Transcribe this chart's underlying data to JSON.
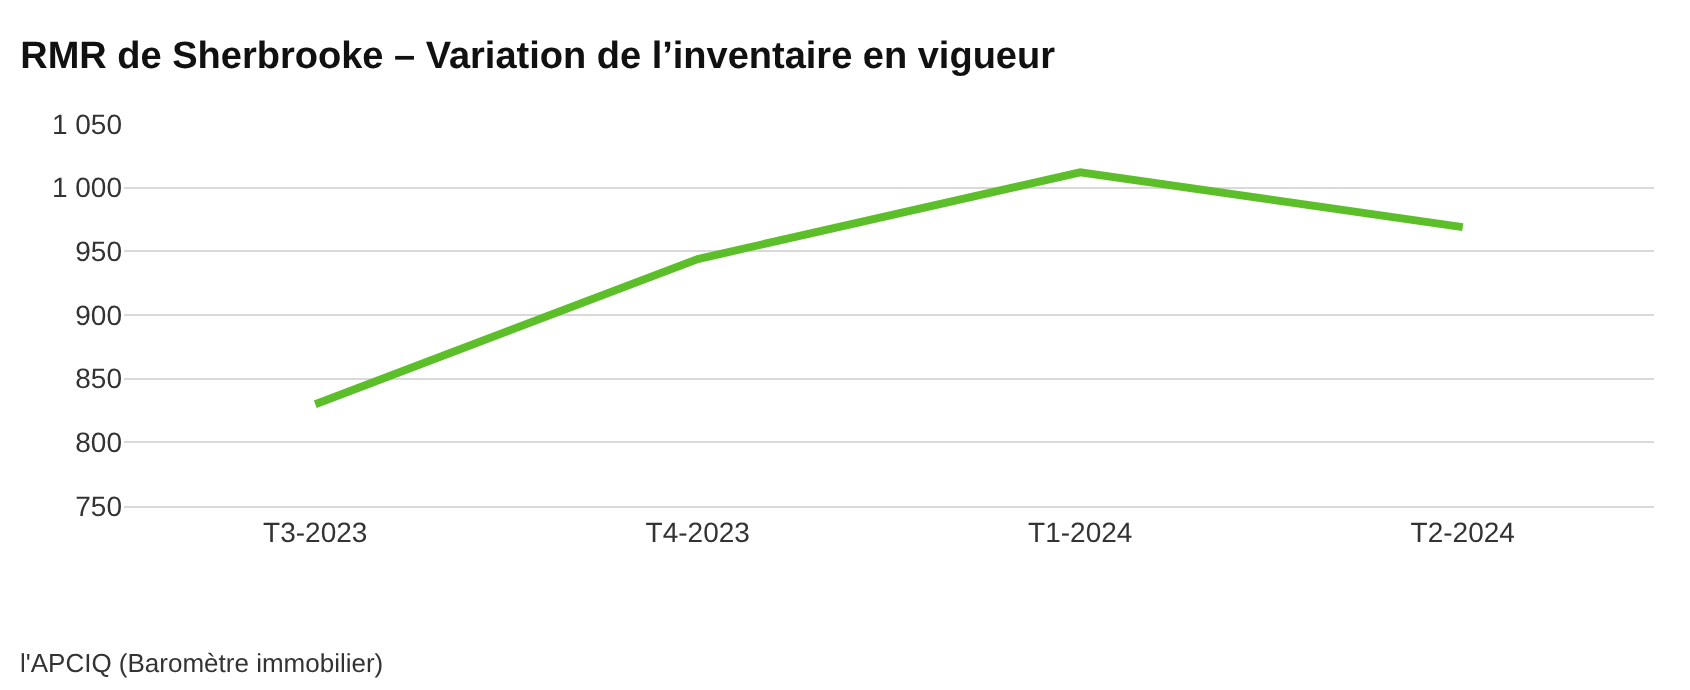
{
  "chart_data": {
    "type": "line",
    "title": "RMR de Sherbrooke – Variation de l’inventaire en vigueur",
    "categories": [
      "T3-2023",
      "T4-2023",
      "T1-2024",
      "T2-2024"
    ],
    "series": [
      {
        "color": "#5cbf2a",
        "values": [
          830,
          944,
          1012,
          969
        ]
      }
    ],
    "ylim": [
      750,
      1050
    ],
    "yticks": [
      750,
      800,
      850,
      900,
      950,
      {
        "value": 1000,
        "label": "1 000"
      },
      {
        "value": 1050,
        "label": "1 050"
      }
    ],
    "grid": "y",
    "marker": "none",
    "line_style": "solid",
    "annotations": [
      "l'APCIQ (Baromètre immobilier)"
    ]
  }
}
